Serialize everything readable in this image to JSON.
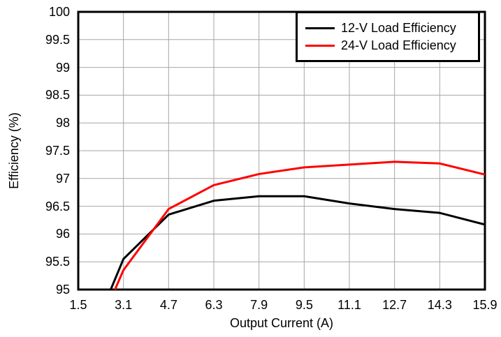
{
  "chart_data": {
    "type": "line",
    "title": "",
    "xlabel": "Output Current (A)",
    "ylabel": "Efficiency (%)",
    "xlim": [
      1.5,
      15.9
    ],
    "ylim": [
      95,
      100
    ],
    "grid": true,
    "legend_position": "top-right",
    "xticks": [
      1.5,
      3.1,
      4.7,
      6.3,
      7.9,
      9.5,
      11.1,
      12.7,
      14.3,
      15.9
    ],
    "xtick_labels": [
      "1.5",
      "3.1",
      "4.7",
      "6.3",
      "7.9",
      "9.5",
      "11.1",
      "12.7",
      "14.3",
      "15.9"
    ],
    "yticks": [
      95,
      95.5,
      96,
      96.5,
      97,
      97.5,
      98,
      98.5,
      99,
      99.5,
      100
    ],
    "ytick_labels": [
      "95",
      "95.5",
      "96",
      "96.5",
      "97",
      "97.5",
      "98",
      "98.5",
      "99",
      "99.5",
      "100"
    ],
    "line_width": 3,
    "colors": {
      "grid": "#a6a6a6",
      "frame": "#000000",
      "background": "#ffffff"
    },
    "series": [
      {
        "name": "12-V Load Efficiency",
        "color": "#000000",
        "points": [
          [
            2.65,
            95.0
          ],
          [
            3.1,
            95.55
          ],
          [
            4.7,
            96.35
          ],
          [
            6.3,
            96.6
          ],
          [
            7.9,
            96.68
          ],
          [
            9.5,
            96.68
          ],
          [
            11.1,
            96.55
          ],
          [
            12.7,
            96.45
          ],
          [
            14.3,
            96.38
          ],
          [
            15.9,
            96.17
          ]
        ]
      },
      {
        "name": "24-V Load Efficiency",
        "color": "#ff0000",
        "points": [
          [
            2.8,
            95.0
          ],
          [
            3.1,
            95.35
          ],
          [
            4.7,
            96.45
          ],
          [
            6.3,
            96.88
          ],
          [
            7.9,
            97.08
          ],
          [
            9.5,
            97.2
          ],
          [
            11.1,
            97.25
          ],
          [
            12.7,
            97.3
          ],
          [
            14.3,
            97.27
          ],
          [
            15.9,
            97.07
          ]
        ]
      }
    ]
  }
}
